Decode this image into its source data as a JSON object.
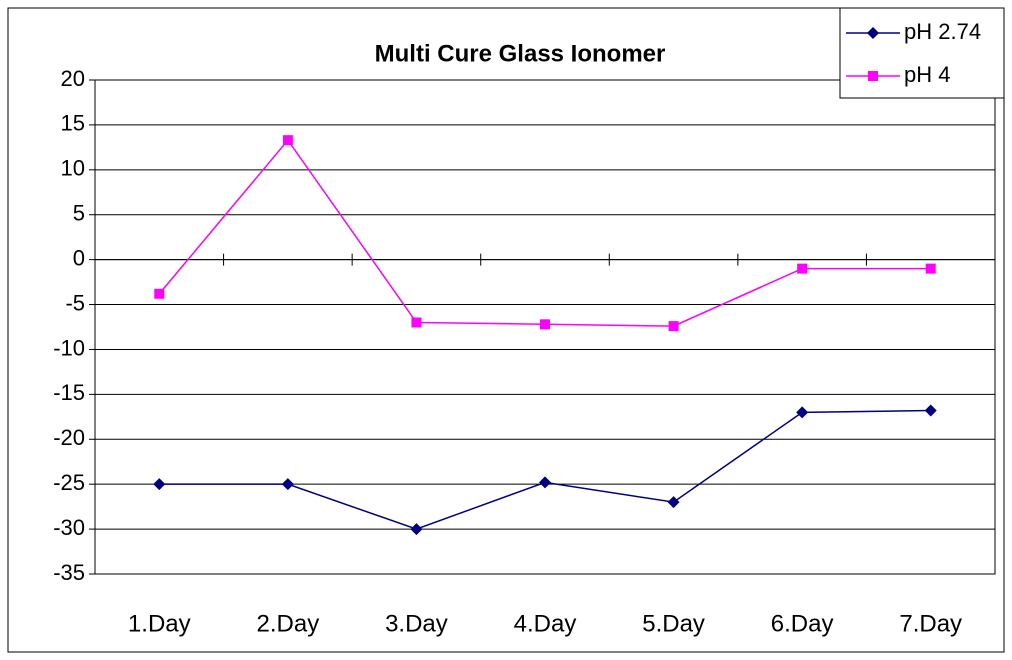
{
  "chart_data": {
    "type": "line",
    "title": "Multi Cure Glass Ionomer",
    "categories": [
      "1.Day",
      "2.Day",
      "3.Day",
      "4.Day",
      "5.Day",
      "6.Day",
      "7.Day"
    ],
    "series": [
      {
        "name": "pH 2.74",
        "color": "#000080",
        "marker": "diamond",
        "values": [
          -25,
          -25,
          -30,
          -24.8,
          -27,
          -17,
          -16.8
        ]
      },
      {
        "name": "pH 4",
        "color": "#ff00ff",
        "marker": "square",
        "values": [
          -3.8,
          13.3,
          -7,
          -7.2,
          -7.4,
          -1,
          -1
        ]
      }
    ],
    "ylim": [
      -35,
      20
    ],
    "yticks": [
      -35,
      -30,
      -25,
      -20,
      -15,
      -10,
      -5,
      0,
      5,
      10,
      15,
      20
    ],
    "grid": true,
    "legend": "top-right"
  }
}
